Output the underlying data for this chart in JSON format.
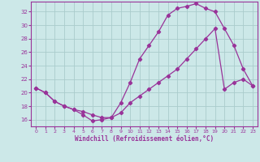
{
  "xlabel": "Windchill (Refroidissement éolien,°C)",
  "bg_color": "#cce8e8",
  "line_color": "#993399",
  "grid_color": "#aacccc",
  "xlim": [
    -0.5,
    23.5
  ],
  "ylim": [
    15.0,
    33.5
  ],
  "yticks": [
    16,
    18,
    20,
    22,
    24,
    26,
    28,
    30,
    32
  ],
  "xticks": [
    0,
    1,
    2,
    3,
    4,
    5,
    6,
    7,
    8,
    9,
    10,
    11,
    12,
    13,
    14,
    15,
    16,
    17,
    18,
    19,
    20,
    21,
    22,
    23
  ],
  "line1_x": [
    0,
    1,
    2,
    3,
    4,
    5,
    6,
    7,
    8,
    9,
    10,
    11,
    12,
    13,
    14,
    15,
    16,
    17,
    18,
    19,
    20,
    21,
    22,
    23
  ],
  "line1_y": [
    20.7,
    20.0,
    18.7,
    18.0,
    17.5,
    16.7,
    15.8,
    16.0,
    16.3,
    18.5,
    21.5,
    25.0,
    27.0,
    29.0,
    31.5,
    32.5,
    32.8,
    33.2,
    32.5,
    32.0,
    29.5,
    27.0,
    23.5,
    21.0
  ],
  "line2_x": [
    0,
    1,
    2,
    3,
    4,
    5,
    6,
    7,
    8,
    9,
    10,
    11,
    12,
    13,
    14,
    15,
    16,
    17,
    18,
    19,
    20,
    21,
    22,
    23
  ],
  "line2_y": [
    20.7,
    20.0,
    18.7,
    18.0,
    17.5,
    17.2,
    16.7,
    16.3,
    16.3,
    17.0,
    18.5,
    19.5,
    20.5,
    21.5,
    22.5,
    23.5,
    25.0,
    26.5,
    28.0,
    29.5,
    20.5,
    21.5,
    22.0,
    21.0
  ]
}
